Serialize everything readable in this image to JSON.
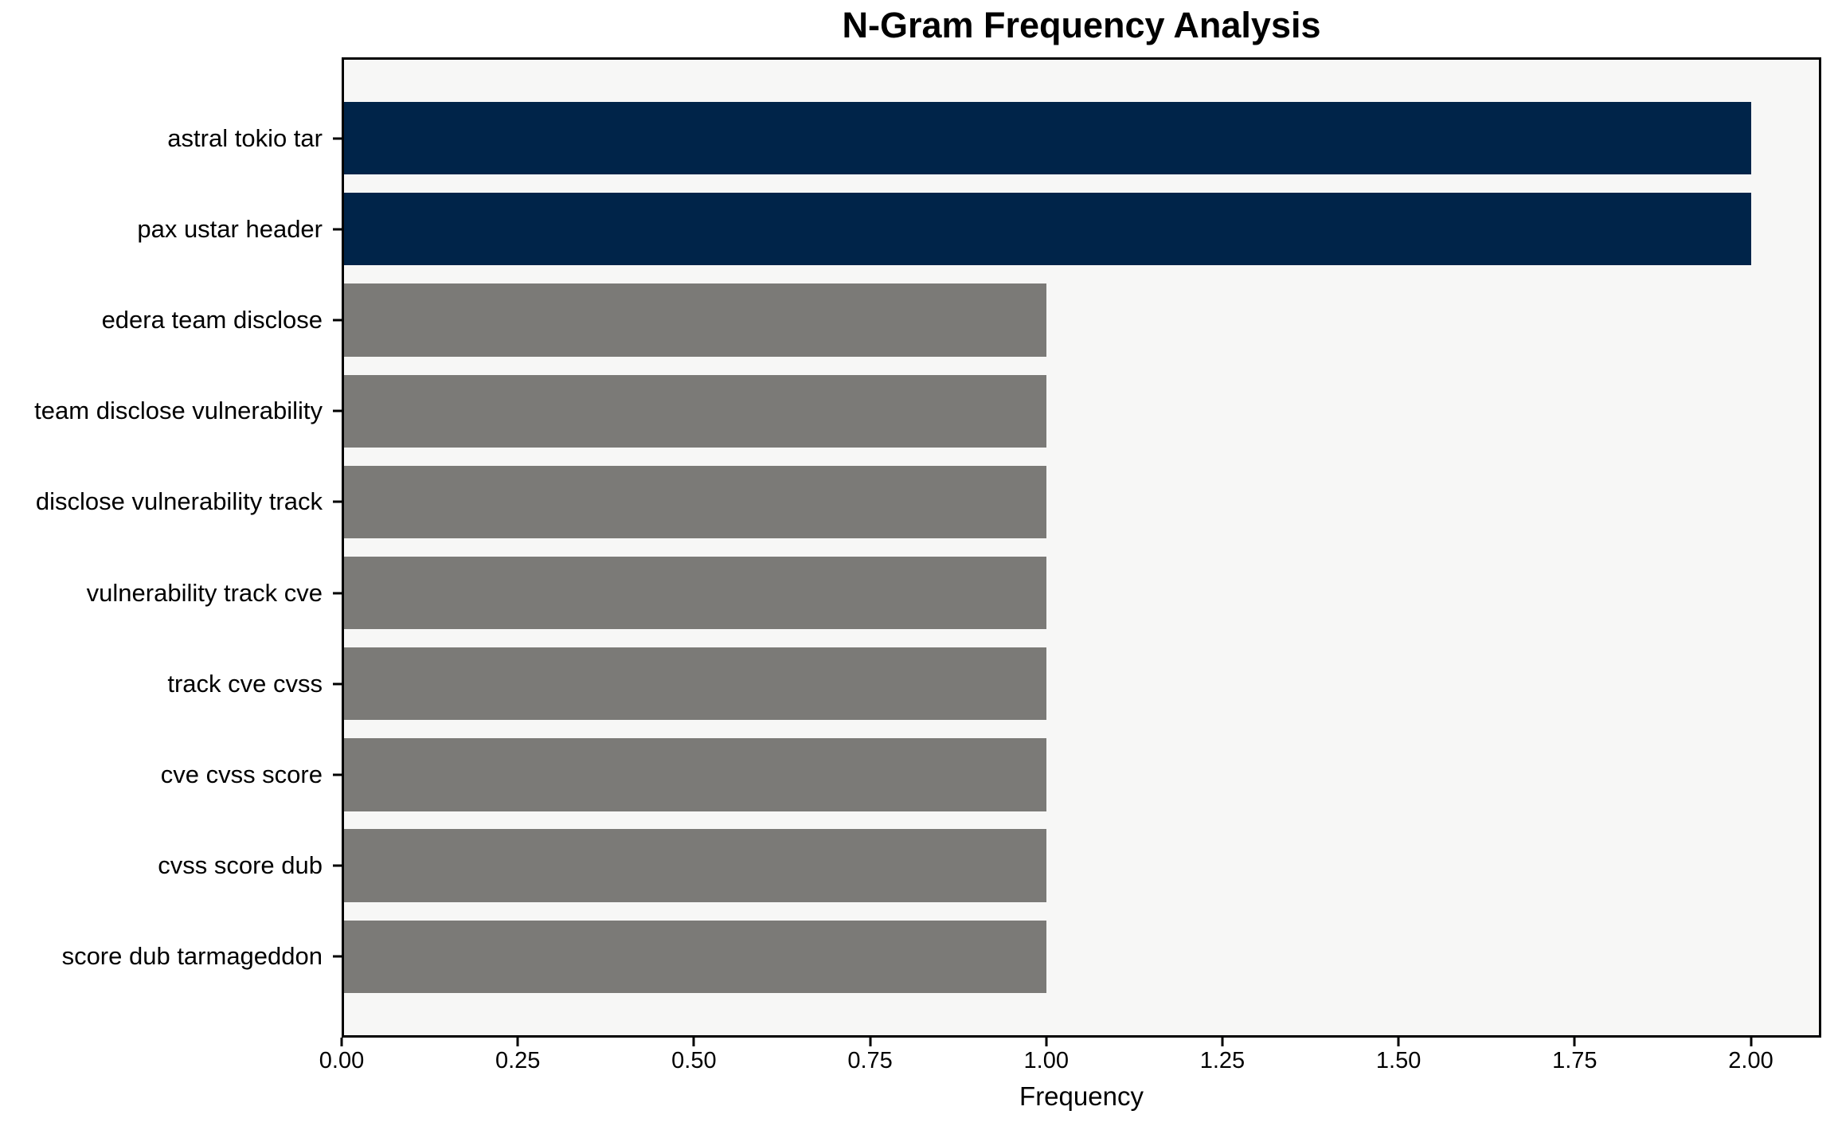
{
  "figure": {
    "background": "#ffffff"
  },
  "chart_data": {
    "type": "bar",
    "orientation": "horizontal",
    "title": "N-Gram Frequency Analysis",
    "xlabel": "Frequency",
    "ylabel": "",
    "categories": [
      "astral tokio tar",
      "pax ustar header",
      "edera team disclose",
      "team disclose vulnerability",
      "disclose vulnerability track",
      "vulnerability track cve",
      "track cve cvss",
      "cve cvss score",
      "cvss score dub",
      "score dub tarmageddon"
    ],
    "values": [
      2,
      2,
      1,
      1,
      1,
      1,
      1,
      1,
      1,
      1
    ],
    "bar_colors": [
      "#002449",
      "#002449",
      "#7b7a77",
      "#7b7a77",
      "#7b7a77",
      "#7b7a77",
      "#7b7a77",
      "#7b7a77",
      "#7b7a77",
      "#7b7a77"
    ],
    "highlight_color": "#002449",
    "normal_color": "#7b7a77",
    "xlim": [
      0,
      2.1
    ],
    "xticks": [
      "0.00",
      "0.25",
      "0.50",
      "0.75",
      "1.00",
      "1.25",
      "1.50",
      "1.75",
      "2.00"
    ],
    "grid": false,
    "legend_position": "none",
    "plot_background": "#f7f7f6",
    "spine_color": "#000000"
  }
}
